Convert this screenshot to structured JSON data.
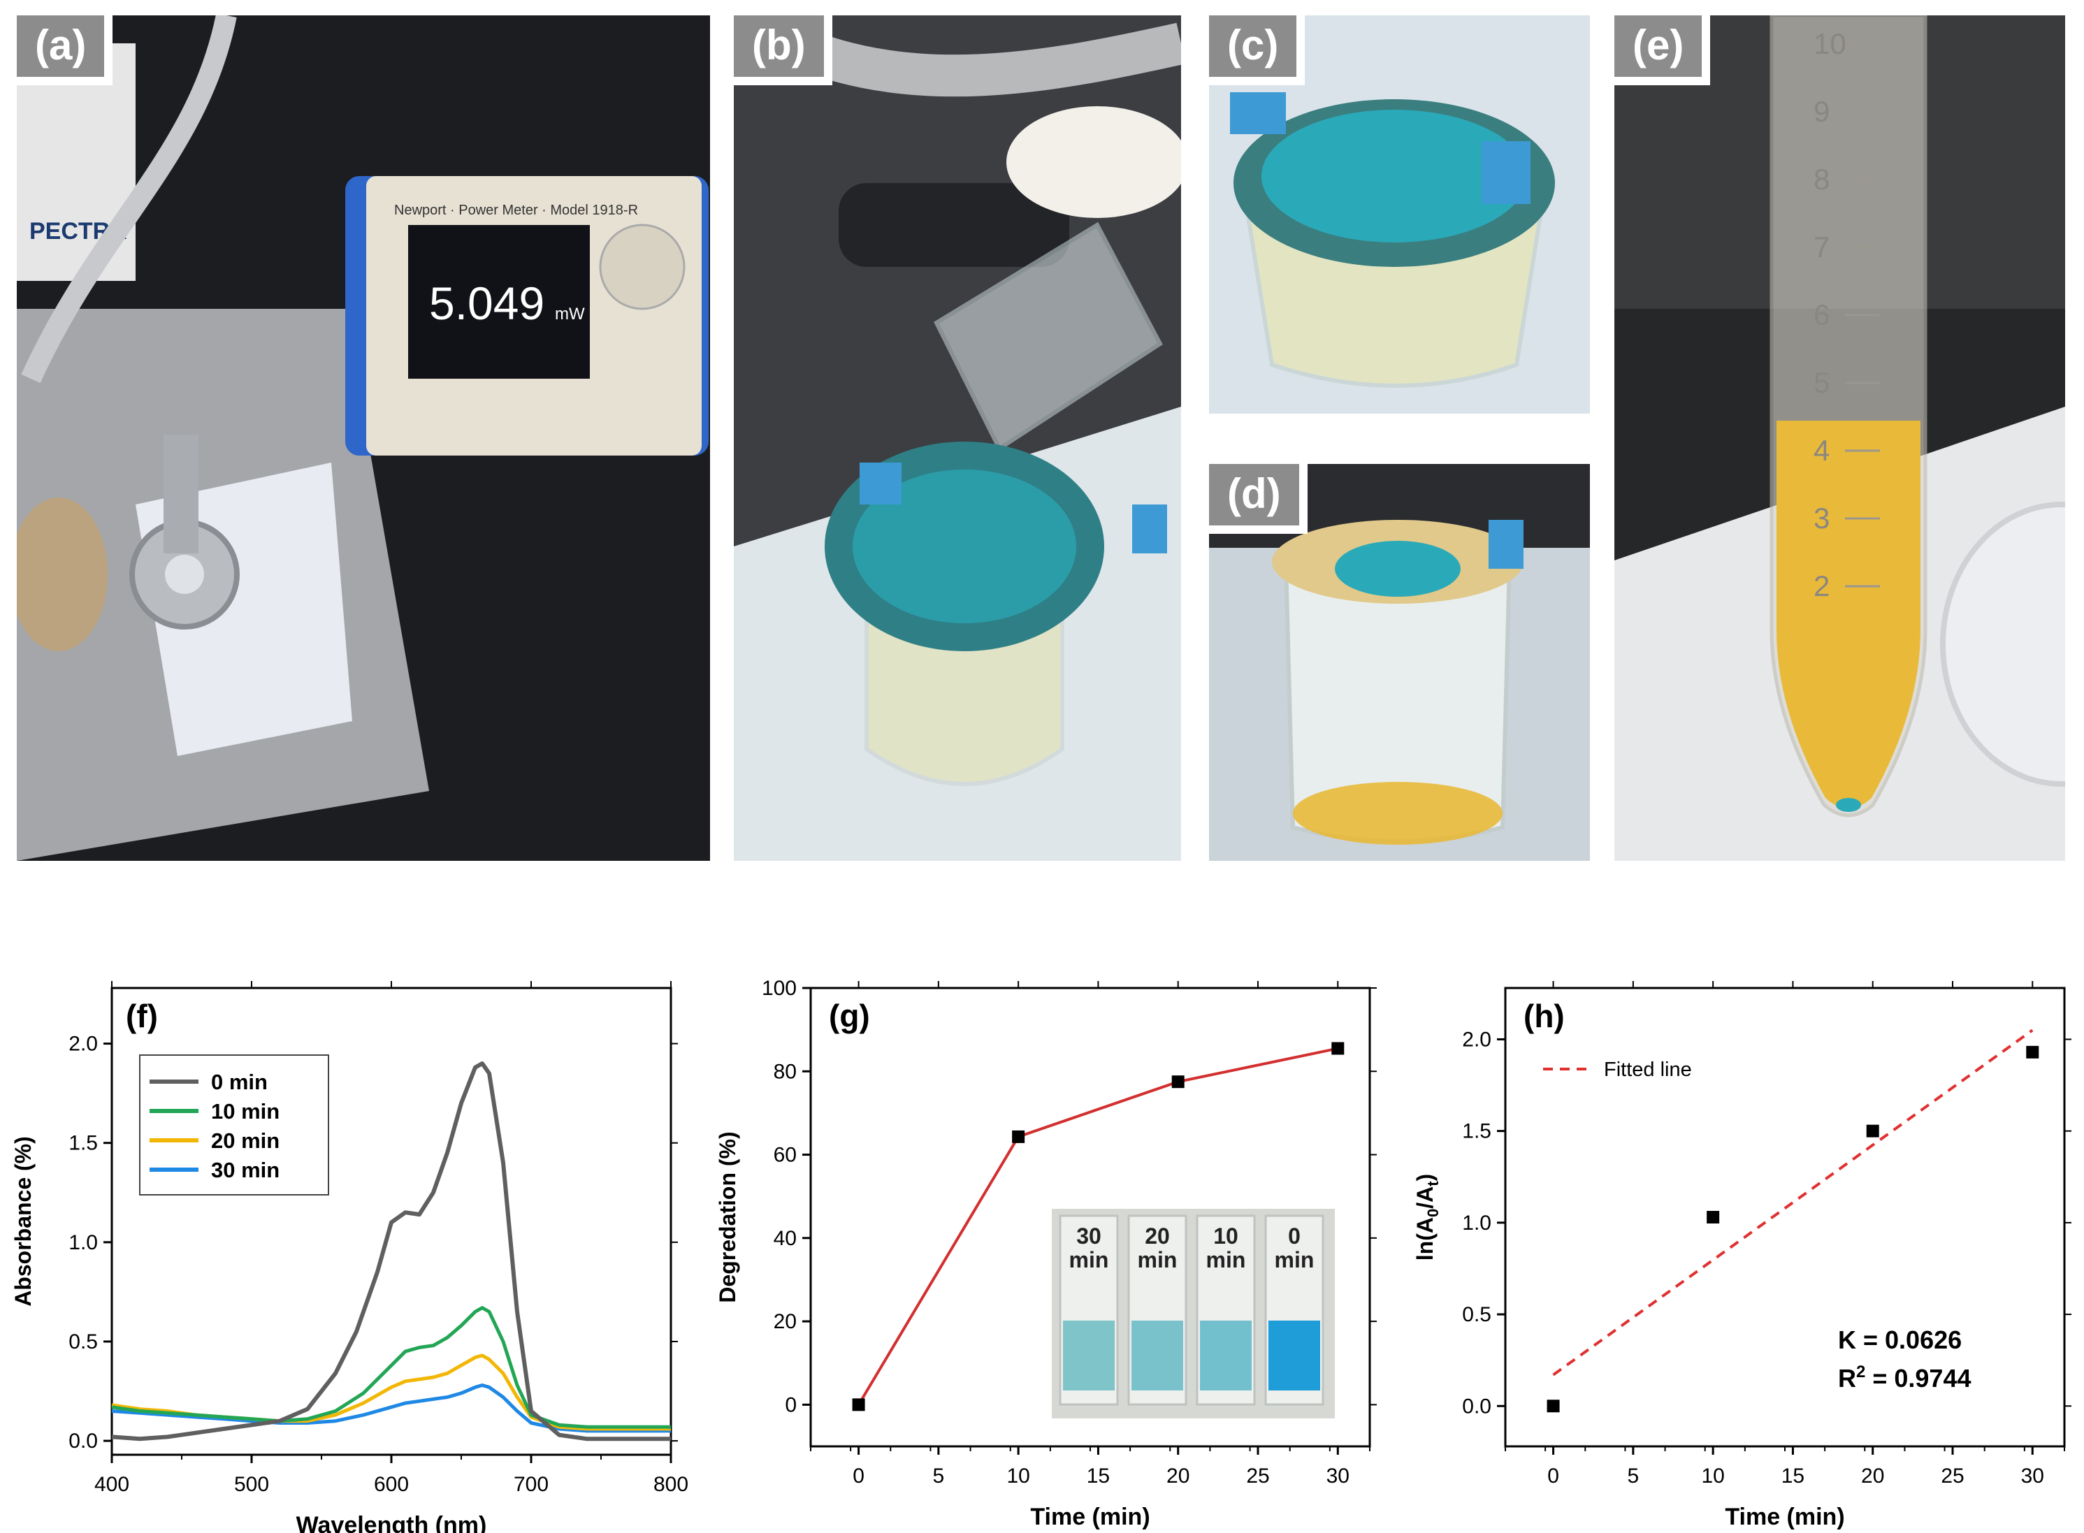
{
  "panels": {
    "a": {
      "label": "(a)",
      "meter_value": "5.049",
      "meter_unit": "mW",
      "meter_brand": "Newport · Power Meter · Model 1918-R",
      "sign": "PECTRA"
    },
    "b": {
      "label": "(b)"
    },
    "c": {
      "label": "(c)"
    },
    "d": {
      "label": "(d)"
    },
    "e": {
      "label": "(e)",
      "tube_marks": [
        "10",
        "9",
        "8",
        "7",
        "6",
        "5",
        "4",
        "3",
        "2"
      ]
    }
  },
  "colors": {
    "blue_dye": "#2aa9b8",
    "yellow_solution": "#e9b93a",
    "bench": "#1c1c1e",
    "paper": "#a7a9ad",
    "red_line": "#d32f2f"
  },
  "chart_data": [
    {
      "id": "f",
      "type": "line",
      "panel_label": "(f)",
      "xlabel": "Wavelength (nm)",
      "ylabel": "Absorbance (%)",
      "xlim": [
        400,
        800
      ],
      "ylim": [
        -0.07,
        2.28
      ],
      "xticks": [
        "400",
        "500",
        "600",
        "700",
        "800"
      ],
      "yticks": [
        "0.0",
        "0.5",
        "1.0",
        "1.5",
        "2.0"
      ],
      "legend_placement": "top-left",
      "series": [
        {
          "name": "0 min",
          "color": "#5f5f5f",
          "x": [
            400,
            420,
            440,
            460,
            480,
            500,
            520,
            540,
            560,
            575,
            590,
            600,
            610,
            620,
            630,
            640,
            650,
            660,
            665,
            670,
            680,
            690,
            700,
            720,
            740,
            760,
            780,
            800
          ],
          "y": [
            0.02,
            0.01,
            0.02,
            0.04,
            0.06,
            0.08,
            0.1,
            0.16,
            0.34,
            0.55,
            0.85,
            1.1,
            1.15,
            1.14,
            1.25,
            1.45,
            1.7,
            1.88,
            1.9,
            1.85,
            1.4,
            0.65,
            0.15,
            0.03,
            0.01,
            0.01,
            0.01,
            0.01
          ]
        },
        {
          "name": "10 min",
          "color": "#22a655",
          "x": [
            400,
            420,
            440,
            460,
            480,
            500,
            520,
            540,
            560,
            580,
            600,
            610,
            620,
            630,
            640,
            650,
            660,
            665,
            670,
            680,
            690,
            700,
            720,
            740,
            760,
            780,
            800
          ],
          "y": [
            0.17,
            0.15,
            0.14,
            0.13,
            0.12,
            0.11,
            0.1,
            0.11,
            0.15,
            0.24,
            0.38,
            0.45,
            0.47,
            0.48,
            0.52,
            0.58,
            0.65,
            0.67,
            0.65,
            0.5,
            0.28,
            0.13,
            0.08,
            0.07,
            0.07,
            0.07,
            0.07
          ]
        },
        {
          "name": "20 min",
          "color": "#f2b705",
          "x": [
            400,
            420,
            440,
            460,
            480,
            500,
            520,
            540,
            560,
            580,
            600,
            610,
            620,
            630,
            640,
            650,
            660,
            665,
            670,
            680,
            690,
            700,
            720,
            740,
            760,
            780,
            800
          ],
          "y": [
            0.18,
            0.16,
            0.15,
            0.13,
            0.12,
            0.11,
            0.1,
            0.1,
            0.13,
            0.19,
            0.27,
            0.3,
            0.31,
            0.32,
            0.34,
            0.38,
            0.42,
            0.43,
            0.41,
            0.34,
            0.22,
            0.12,
            0.07,
            0.06,
            0.06,
            0.06,
            0.06
          ]
        },
        {
          "name": "30 min",
          "color": "#1e88e5",
          "x": [
            400,
            420,
            440,
            460,
            480,
            500,
            520,
            540,
            560,
            580,
            600,
            610,
            620,
            630,
            640,
            650,
            660,
            665,
            670,
            680,
            690,
            700,
            720,
            740,
            760,
            780,
            800
          ],
          "y": [
            0.15,
            0.14,
            0.13,
            0.12,
            0.11,
            0.1,
            0.09,
            0.09,
            0.1,
            0.13,
            0.17,
            0.19,
            0.2,
            0.21,
            0.22,
            0.24,
            0.27,
            0.28,
            0.27,
            0.22,
            0.15,
            0.09,
            0.06,
            0.05,
            0.05,
            0.05,
            0.05
          ]
        }
      ]
    },
    {
      "id": "g",
      "type": "line",
      "panel_label": "(g)",
      "xlabel": "Time (min)",
      "ylabel": "Degredation (%)",
      "xlim": [
        -3,
        32
      ],
      "ylim": [
        -10,
        100
      ],
      "xticks": [
        "0",
        "5",
        "10",
        "15",
        "20",
        "25",
        "30"
      ],
      "yticks": [
        "0",
        "20",
        "40",
        "60",
        "80",
        "100"
      ],
      "series": [
        {
          "color": "#d32f2f",
          "marker": "square",
          "x": [
            0,
            10,
            20,
            30
          ],
          "y": [
            0,
            64.3,
            77.5,
            85.5
          ]
        }
      ],
      "inset": {
        "labels": [
          "30\nmin",
          "20\nmin",
          "10\nmin",
          "0\nmin"
        ]
      }
    },
    {
      "id": "h",
      "type": "scatter",
      "panel_label": "(h)",
      "xlabel": "Time (min)",
      "ylabel": "ln(A0/At)",
      "xlim": [
        -3,
        32
      ],
      "ylim": [
        -0.22,
        2.28
      ],
      "xticks": [
        "0",
        "5",
        "10",
        "15",
        "20",
        "25",
        "30"
      ],
      "yticks": [
        "0.0",
        "0.5",
        "1.0",
        "1.5",
        "2.0"
      ],
      "legend_placement": "top-left",
      "series": [
        {
          "marker": "square",
          "color": "#000000",
          "x": [
            0,
            10,
            20,
            30
          ],
          "y": [
            0.0,
            1.03,
            1.5,
            1.93
          ]
        },
        {
          "name": "Fitted line",
          "style": "dashed",
          "color": "#e03030",
          "x": [
            0,
            30
          ],
          "y": [
            0.17,
            2.05
          ]
        }
      ],
      "annotations": {
        "k": "K  = 0.0626",
        "r2_prefix": "R",
        "r2_sup": "2",
        "r2_rest": " = 0.9744"
      }
    }
  ]
}
